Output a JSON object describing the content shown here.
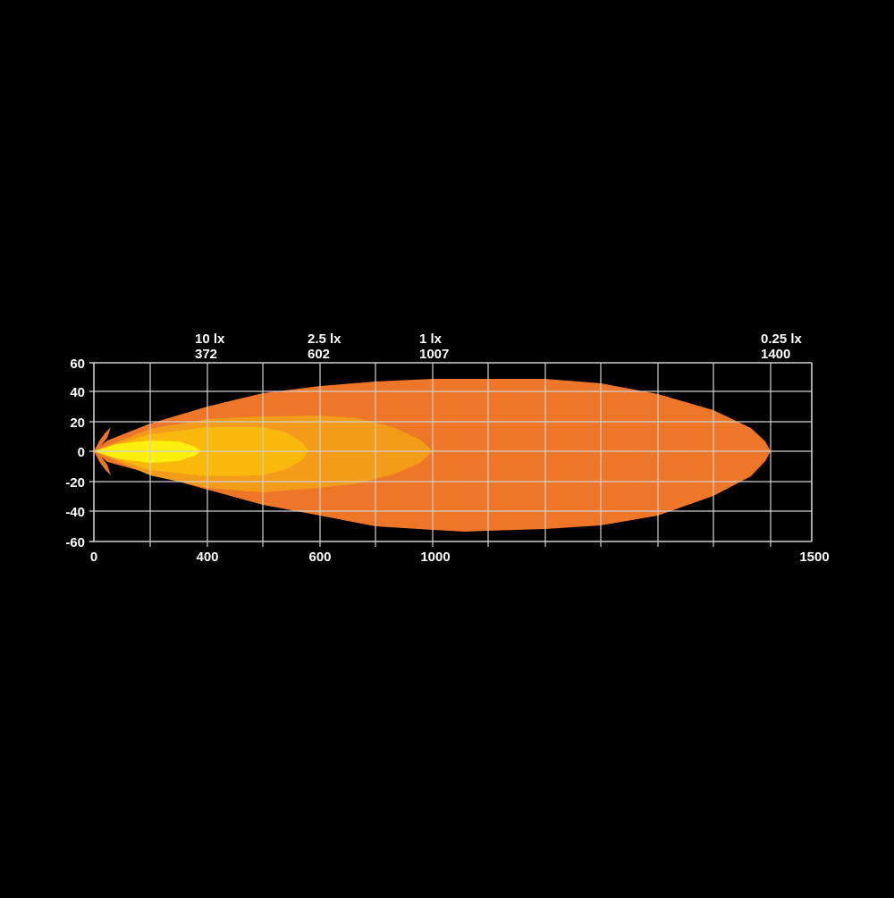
{
  "chart_data": {
    "type": "area",
    "title": "",
    "xlabel": "",
    "ylabel": "",
    "x_tick_labels": [
      "0",
      "400",
      "600",
      "1000",
      "1500"
    ],
    "y_tick_labels": [
      "60",
      "40",
      "20",
      "0",
      "-20",
      "-40",
      "-60"
    ],
    "ylim": [
      -60,
      60
    ],
    "grid": true,
    "contours": [
      {
        "level": "0.25 lx",
        "distance": "1400",
        "color": "#ee7628"
      },
      {
        "level": "1 lx",
        "distance": "1007",
        "color": "#f39c1a"
      },
      {
        "level": "2.5 lx",
        "distance": "602",
        "color": "#f8b80c"
      },
      {
        "level": "10 lx",
        "distance": "372",
        "color": "#fcef0e"
      }
    ],
    "top_labels_order": [
      "10 lx",
      "2.5 lx",
      "1 lx",
      "0.25 lx"
    ]
  }
}
